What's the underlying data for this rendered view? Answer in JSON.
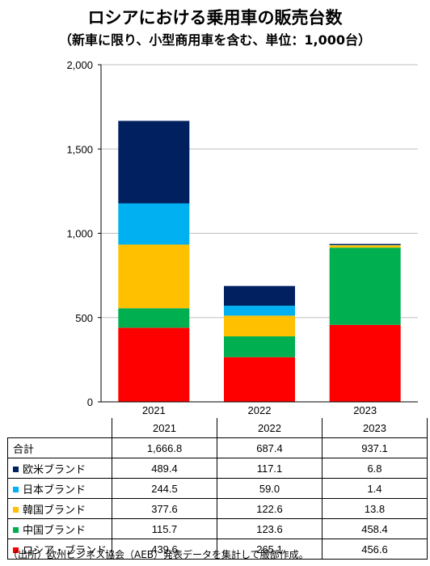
{
  "title": "ロシアにおける乗用車の販売台数",
  "subtitle": "（新車に限り、小型商用車を含む、単位：1,000台）",
  "source": "（出所）欧州ビジネス協会（AEB）発表データを集計して服部作成。",
  "table": {
    "total_label": "合計",
    "totals": [
      "1,666.8",
      "687.4",
      "937.1"
    ]
  },
  "chart_data": {
    "type": "bar",
    "stacked": true,
    "categories": [
      "2021",
      "2022",
      "2023"
    ],
    "ylim": [
      0,
      2000
    ],
    "yticks": [
      0,
      500,
      1000,
      1500,
      2000
    ],
    "ytick_labels": [
      "0",
      "500",
      "1,000",
      "1,500",
      "2,000"
    ],
    "series": [
      {
        "name": "ロシア・ブランド",
        "color": "#ff0000",
        "values": [
          439.6,
          265.1,
          456.6
        ]
      },
      {
        "name": "中国ブランド",
        "color": "#00b050",
        "values": [
          115.7,
          123.6,
          458.4
        ]
      },
      {
        "name": "韓国ブランド",
        "color": "#ffc000",
        "values": [
          377.6,
          122.6,
          13.8
        ]
      },
      {
        "name": "日本ブランド",
        "color": "#00b0f0",
        "values": [
          244.5,
          59.0,
          1.4
        ]
      },
      {
        "name": "欧米ブランド",
        "color": "#002060",
        "values": [
          489.4,
          117.1,
          6.8
        ]
      }
    ]
  }
}
